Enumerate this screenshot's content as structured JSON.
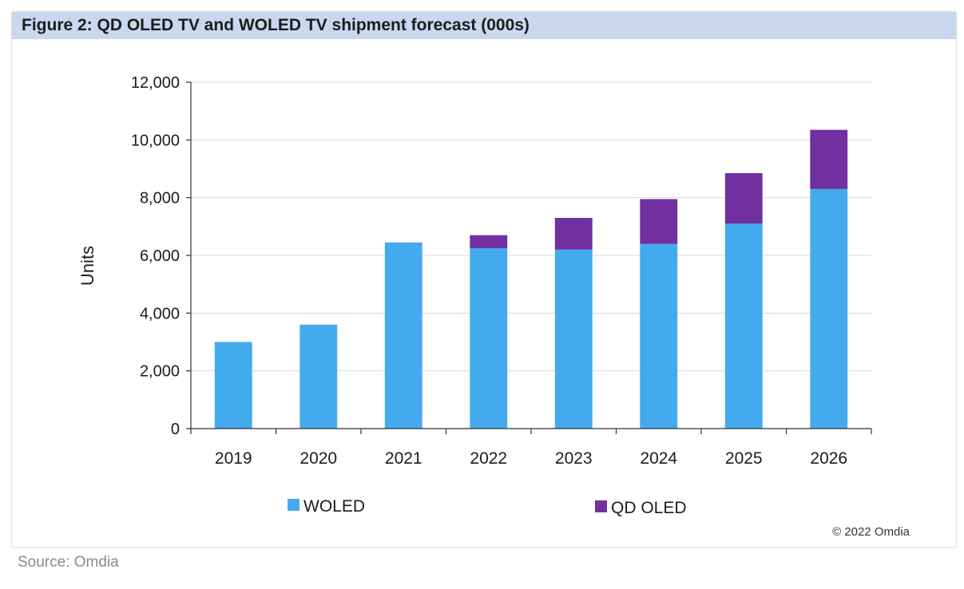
{
  "title": "Figure 2: QD OLED TV and WOLED TV shipment forecast (000s)",
  "copyright": "© 2022 Omdia",
  "source": "Source: Omdia",
  "colors": {
    "woled": "#44aaee",
    "qdoled": "#7030a0",
    "gridline": "#d9d9d9",
    "axis": "#333333"
  },
  "chart_data": {
    "type": "bar",
    "stacked": true,
    "categories": [
      "2019",
      "2020",
      "2021",
      "2022",
      "2023",
      "2024",
      "2025",
      "2026"
    ],
    "series": [
      {
        "name": "WOLED",
        "values": [
          3000,
          3600,
          6450,
          6250,
          6200,
          6400,
          7100,
          8300
        ]
      },
      {
        "name": "QD OLED",
        "values": [
          0,
          0,
          0,
          450,
          1100,
          1550,
          1750,
          2050
        ]
      }
    ],
    "ylabel": "Units",
    "xlabel": "",
    "ylim": [
      0,
      12000
    ],
    "yticks": [
      0,
      2000,
      4000,
      6000,
      8000,
      10000,
      12000
    ],
    "ytick_labels": [
      "0",
      "2,000",
      "4,000",
      "6,000",
      "8,000",
      "10,000",
      "12,000"
    ],
    "grid": true,
    "legend_position": "bottom"
  }
}
